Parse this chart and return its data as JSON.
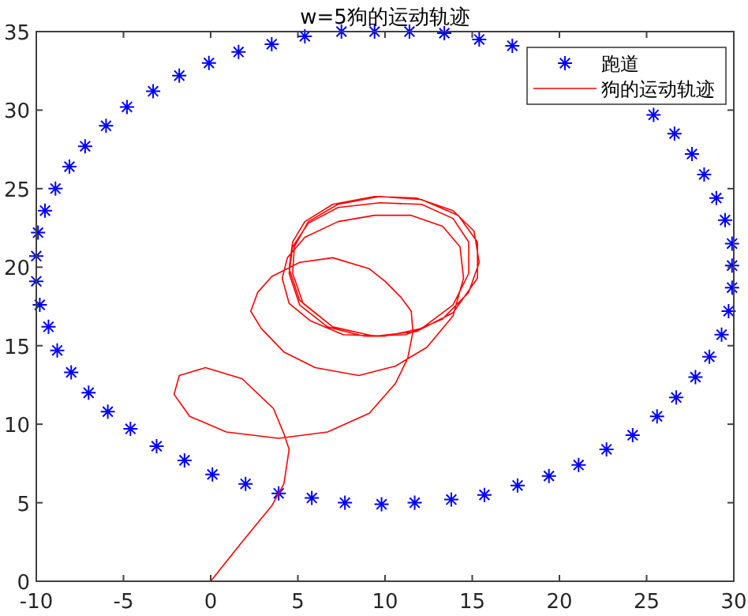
{
  "chart_data": {
    "type": "scatter",
    "title": "w=5狗的运动轨迹",
    "xlim": [
      -10,
      30
    ],
    "ylim": [
      0,
      35
    ],
    "xticks": [
      -10,
      -5,
      0,
      5,
      10,
      15,
      20,
      25,
      30
    ],
    "yticks": [
      0,
      5,
      10,
      15,
      20,
      25,
      30,
      35
    ],
    "legend": "top right",
    "series": [
      {
        "name": "跑道",
        "marker": "cross",
        "color": "#0000ff",
        "x": [
          9.4,
          11.4,
          13.4,
          15.4,
          17.3,
          25.4,
          26.6,
          27.6,
          28.3,
          29.0,
          29.5,
          29.9,
          29.9,
          29.9,
          29.7,
          29.3,
          28.6,
          27.8,
          26.7,
          25.6,
          24.2,
          22.7,
          21.1,
          19.4,
          17.6,
          15.7,
          13.8,
          11.7,
          9.8,
          7.7,
          5.8,
          3.9,
          2.0,
          0.1,
          -1.5,
          -3.1,
          -4.6,
          -5.9,
          -7.0,
          -8.0,
          -8.8,
          -9.3,
          -9.8,
          -10.0,
          -10.0,
          -9.9,
          -9.5,
          -8.9,
          -8.1,
          -7.2,
          -6.0,
          -4.8,
          -3.3,
          -1.8,
          -0.1,
          1.6,
          3.5,
          5.4,
          7.5
        ],
        "values": [
          35.0,
          35.0,
          34.9,
          34.5,
          34.1,
          29.7,
          28.5,
          27.2,
          25.9,
          24.4,
          23.0,
          21.5,
          20.1,
          18.7,
          17.2,
          15.7,
          14.3,
          13.0,
          11.7,
          10.5,
          9.3,
          8.4,
          7.4,
          6.7,
          6.1,
          5.5,
          5.2,
          5.0,
          4.9,
          5.0,
          5.3,
          5.6,
          6.2,
          6.8,
          7.7,
          8.6,
          9.7,
          10.8,
          12.0,
          13.3,
          14.7,
          16.2,
          17.6,
          19.1,
          20.7,
          22.2,
          23.6,
          25.0,
          26.4,
          27.7,
          29.0,
          30.2,
          31.2,
          32.2,
          33.0,
          33.7,
          34.2,
          34.7,
          35.0
        ]
      },
      {
        "name": "狗的运动轨迹",
        "type": "line",
        "marker": "none",
        "color": "#ff0000",
        "x": [
          0.0,
          1.8,
          3.5,
          4.2,
          4.5,
          4.2,
          3.6,
          1.8,
          -0.3,
          -1.8,
          -2.1,
          -1.2,
          0.9,
          3.9,
          6.7,
          9.1,
          10.6,
          11.3,
          11.6,
          11.5,
          10.9,
          10.0,
          9.1,
          7.0,
          5.1,
          3.5,
          2.7,
          2.3,
          2.9,
          4.2,
          6.0,
          8.5,
          10.6,
          12.4,
          13.9,
          14.5,
          14.3,
          13.3,
          11.5,
          9.4,
          7.3,
          5.4,
          4.4,
          4.1,
          4.5,
          5.7,
          7.6,
          10.0,
          12.1,
          13.9,
          14.8,
          14.8,
          13.9,
          12.1,
          9.7,
          7.3,
          5.6,
          4.7,
          4.5,
          5.1,
          6.7,
          8.8,
          11.2,
          13.3,
          14.8,
          15.4,
          15.1,
          13.9,
          11.8,
          9.4,
          7.0,
          5.4,
          4.7,
          4.5,
          5.1,
          7.0,
          9.4,
          11.8,
          13.9,
          15.3,
          15.3,
          14.2,
          12.1,
          9.7,
          7.3,
          5.6,
          4.8,
          4.7,
          5.3,
          7.0,
          9.4,
          11.8,
          13.9,
          15.3,
          15.3,
          14.2,
          12.1,
          9.7,
          7.3,
          5.6,
          4.8,
          4.7,
          5.3
        ],
        "values": [
          0,
          2.5,
          4.8,
          6.2,
          8.4,
          9.4,
          11.0,
          12.9,
          13.6,
          13.1,
          11.9,
          10.5,
          9.5,
          9.1,
          9.5,
          10.7,
          12.6,
          14.2,
          15.9,
          17.2,
          18.1,
          19.1,
          19.9,
          20.6,
          20.3,
          19.4,
          18.4,
          17.2,
          16.1,
          14.6,
          13.6,
          13.1,
          13.7,
          14.9,
          16.9,
          19.3,
          21.3,
          22.6,
          23.3,
          23.3,
          22.9,
          21.9,
          20.6,
          19.3,
          17.7,
          16.6,
          15.7,
          15.6,
          16.1,
          17.6,
          19.6,
          21.6,
          23.1,
          24.0,
          24.1,
          23.8,
          22.8,
          21.3,
          19.6,
          17.6,
          16.2,
          15.6,
          15.7,
          16.7,
          18.4,
          20.3,
          22.3,
          23.6,
          24.4,
          24.5,
          24.0,
          22.9,
          21.6,
          19.9,
          17.9,
          16.2,
          15.6,
          15.9,
          17.1,
          19.3,
          21.6,
          23.3,
          24.3,
          24.5,
          24.0,
          22.9,
          21.3,
          19.6,
          17.7,
          16.2,
          15.6,
          15.9,
          17.1,
          19.3,
          21.6,
          23.3,
          24.3,
          24.5,
          24.0,
          22.9,
          21.3,
          19.6,
          17.7
        ]
      }
    ]
  }
}
